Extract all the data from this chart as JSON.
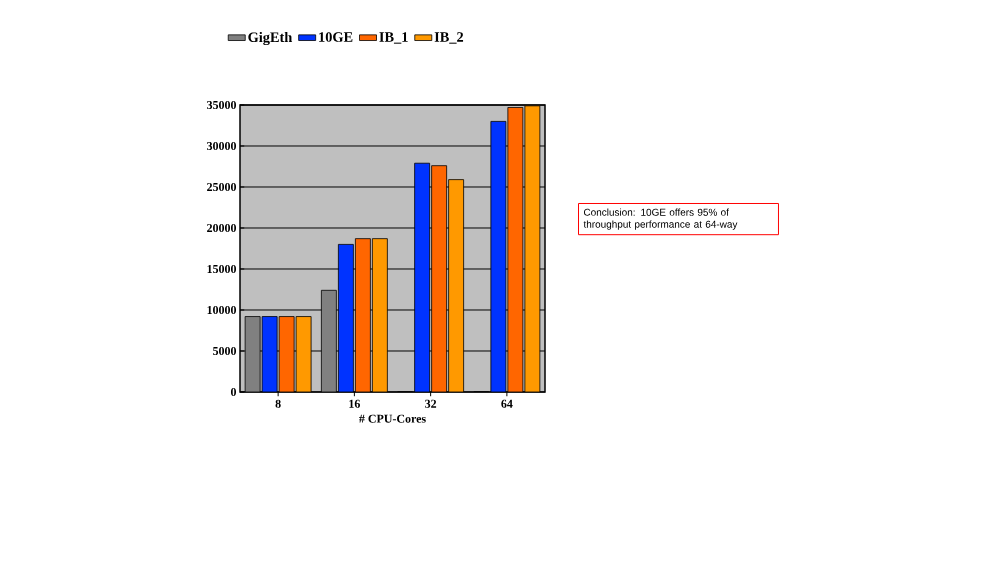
{
  "chart_data": {
    "type": "bar",
    "xlabel": "# CPU-Cores",
    "categories": [
      "8",
      "16",
      "32",
      "64"
    ],
    "series": [
      {
        "name": "GigEth",
        "color": "#808080",
        "values": [
          9200,
          12400,
          0,
          0
        ]
      },
      {
        "name": "10GE",
        "color": "#0033ff",
        "values": [
          9200,
          18000,
          27900,
          33000
        ]
      },
      {
        "name": "IB_1",
        "color": "#ff6600",
        "values": [
          9200,
          18700,
          27600,
          34700
        ]
      },
      {
        "name": "IB_2",
        "color": "#ff9900",
        "values": [
          9200,
          18700,
          25900,
          34900
        ]
      }
    ],
    "ylim": [
      0,
      35000
    ],
    "yticks": [
      0,
      5000,
      10000,
      15000,
      20000,
      25000,
      30000,
      35000
    ],
    "grid": "y",
    "legend": "top",
    "annotations": [
      "Conclusion: 10GE offers 95% of throughput performance at 64-way"
    ]
  }
}
